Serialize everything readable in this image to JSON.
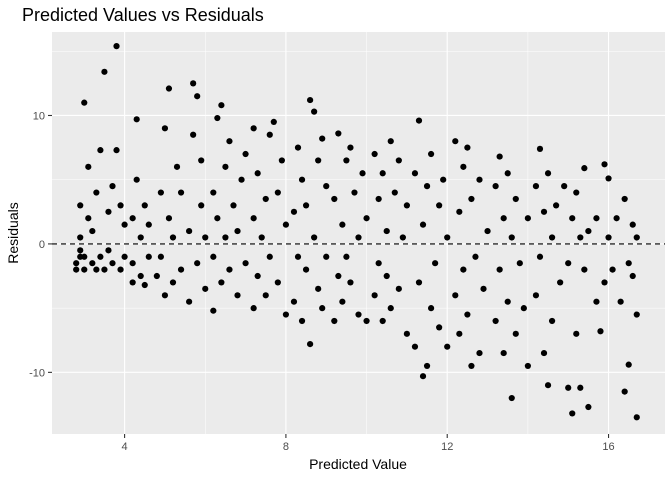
{
  "chart_data": {
    "type": "scatter",
    "title": "Predicted Values vs Residuals",
    "xlabel": "Predicted Value",
    "ylabel": "Residuals",
    "xlim": [
      2.2,
      17.4
    ],
    "ylim": [
      -14.8,
      16.5
    ],
    "x_ticks": [
      4,
      8,
      12,
      16
    ],
    "x_tick_labels": [
      "4",
      "8",
      "12",
      "16"
    ],
    "y_ticks": [
      -10,
      0,
      10
    ],
    "y_tick_labels": [
      "-10",
      "0",
      "10"
    ],
    "x_minor_ticks": [
      6,
      10,
      14
    ],
    "y_minor_ticks": [
      -5,
      5,
      15
    ],
    "reference_line": {
      "y": 0,
      "style": "dashed"
    },
    "grid": true,
    "colors": {
      "panel": "#ebebeb",
      "point": "#000000",
      "grid": "#ffffff",
      "ref_line": "#000000"
    },
    "points": [
      {
        "x": 2.8,
        "y": -2
      },
      {
        "x": 2.8,
        "y": -1.5
      },
      {
        "x": 2.9,
        "y": -1
      },
      {
        "x": 2.9,
        "y": -0.5
      },
      {
        "x": 2.9,
        "y": 0.5
      },
      {
        "x": 2.9,
        "y": 3
      },
      {
        "x": 3.0,
        "y": -2
      },
      {
        "x": 3.0,
        "y": -1
      },
      {
        "x": 3.0,
        "y": 11
      },
      {
        "x": 3.1,
        "y": 2
      },
      {
        "x": 3.1,
        "y": 6
      },
      {
        "x": 3.2,
        "y": -1.5
      },
      {
        "x": 3.2,
        "y": 1
      },
      {
        "x": 3.3,
        "y": -2
      },
      {
        "x": 3.3,
        "y": 4
      },
      {
        "x": 3.4,
        "y": -1
      },
      {
        "x": 3.4,
        "y": 7.3
      },
      {
        "x": 3.5,
        "y": 13.4
      },
      {
        "x": 3.5,
        "y": -2
      },
      {
        "x": 3.6,
        "y": -0.5
      },
      {
        "x": 3.6,
        "y": 2.5
      },
      {
        "x": 3.7,
        "y": -1.5
      },
      {
        "x": 3.7,
        "y": 4.5
      },
      {
        "x": 3.8,
        "y": 15.4
      },
      {
        "x": 3.8,
        "y": 7.3
      },
      {
        "x": 3.9,
        "y": -2
      },
      {
        "x": 3.9,
        "y": 3
      },
      {
        "x": 4.0,
        "y": -1
      },
      {
        "x": 4.0,
        "y": 1.5
      },
      {
        "x": 4.2,
        "y": -3
      },
      {
        "x": 4.2,
        "y": -1.5
      },
      {
        "x": 4.2,
        "y": 2
      },
      {
        "x": 4.3,
        "y": 5
      },
      {
        "x": 4.3,
        "y": 9.7
      },
      {
        "x": 4.4,
        "y": -2.5
      },
      {
        "x": 4.4,
        "y": 0.5
      },
      {
        "x": 4.5,
        "y": -3.2
      },
      {
        "x": 4.5,
        "y": 3
      },
      {
        "x": 4.6,
        "y": -1
      },
      {
        "x": 4.6,
        "y": 1.5
      },
      {
        "x": 4.8,
        "y": -2.5
      },
      {
        "x": 4.9,
        "y": -1
      },
      {
        "x": 4.9,
        "y": 4
      },
      {
        "x": 5.0,
        "y": 9
      },
      {
        "x": 5.0,
        "y": -4
      },
      {
        "x": 5.1,
        "y": 12.1
      },
      {
        "x": 5.1,
        "y": 2
      },
      {
        "x": 5.2,
        "y": -3
      },
      {
        "x": 5.2,
        "y": 0.5
      },
      {
        "x": 5.3,
        "y": 6
      },
      {
        "x": 5.4,
        "y": -2
      },
      {
        "x": 5.4,
        "y": 4
      },
      {
        "x": 5.6,
        "y": -4.5
      },
      {
        "x": 5.6,
        "y": 1
      },
      {
        "x": 5.7,
        "y": 12.5
      },
      {
        "x": 5.7,
        "y": 8.5
      },
      {
        "x": 5.8,
        "y": 11.5
      },
      {
        "x": 5.8,
        "y": -1.5
      },
      {
        "x": 5.9,
        "y": 3
      },
      {
        "x": 5.9,
        "y": 6.5
      },
      {
        "x": 6.0,
        "y": -3.5
      },
      {
        "x": 6.0,
        "y": 0.5
      },
      {
        "x": 6.2,
        "y": -5.2
      },
      {
        "x": 6.2,
        "y": -1
      },
      {
        "x": 6.2,
        "y": 4
      },
      {
        "x": 6.3,
        "y": 9.8
      },
      {
        "x": 6.3,
        "y": 2
      },
      {
        "x": 6.4,
        "y": 10.8
      },
      {
        "x": 6.4,
        "y": -3
      },
      {
        "x": 6.5,
        "y": 6
      },
      {
        "x": 6.5,
        "y": 0.5
      },
      {
        "x": 6.6,
        "y": -2
      },
      {
        "x": 6.6,
        "y": 8
      },
      {
        "x": 6.7,
        "y": 3
      },
      {
        "x": 6.8,
        "y": -4
      },
      {
        "x": 6.8,
        "y": 1
      },
      {
        "x": 6.9,
        "y": 5
      },
      {
        "x": 7.0,
        "y": -1.5
      },
      {
        "x": 7.0,
        "y": 7
      },
      {
        "x": 7.2,
        "y": -5
      },
      {
        "x": 7.2,
        "y": 9
      },
      {
        "x": 7.2,
        "y": 2
      },
      {
        "x": 7.3,
        "y": -2.5
      },
      {
        "x": 7.3,
        "y": 5.5
      },
      {
        "x": 7.4,
        "y": 0.5
      },
      {
        "x": 7.5,
        "y": -4
      },
      {
        "x": 7.5,
        "y": 3.5
      },
      {
        "x": 7.6,
        "y": 8.5
      },
      {
        "x": 7.6,
        "y": -1
      },
      {
        "x": 7.7,
        "y": 9.5
      },
      {
        "x": 7.8,
        "y": -3
      },
      {
        "x": 7.8,
        "y": 4
      },
      {
        "x": 7.9,
        "y": 6.5
      },
      {
        "x": 8.0,
        "y": -5.5
      },
      {
        "x": 8.0,
        "y": 1.5
      },
      {
        "x": 8.2,
        "y": -4.5
      },
      {
        "x": 8.2,
        "y": 2.5
      },
      {
        "x": 8.3,
        "y": -1
      },
      {
        "x": 8.3,
        "y": 7.5
      },
      {
        "x": 8.4,
        "y": -6
      },
      {
        "x": 8.4,
        "y": 5
      },
      {
        "x": 8.5,
        "y": -2
      },
      {
        "x": 8.5,
        "y": 3
      },
      {
        "x": 8.6,
        "y": 11.2
      },
      {
        "x": 8.6,
        "y": -7.8
      },
      {
        "x": 8.7,
        "y": 10.3
      },
      {
        "x": 8.7,
        "y": 0.5
      },
      {
        "x": 8.8,
        "y": -3.5
      },
      {
        "x": 8.8,
        "y": 6.5
      },
      {
        "x": 8.9,
        "y": -5
      },
      {
        "x": 8.9,
        "y": 8.2
      },
      {
        "x": 9.0,
        "y": -1
      },
      {
        "x": 9.0,
        "y": 4.5
      },
      {
        "x": 9.2,
        "y": -6
      },
      {
        "x": 9.2,
        "y": 3.5
      },
      {
        "x": 9.3,
        "y": -2.5
      },
      {
        "x": 9.3,
        "y": 8.6
      },
      {
        "x": 9.4,
        "y": -4.5
      },
      {
        "x": 9.4,
        "y": 1.5
      },
      {
        "x": 9.5,
        "y": 6.5
      },
      {
        "x": 9.5,
        "y": -1
      },
      {
        "x": 9.6,
        "y": 7.5
      },
      {
        "x": 9.6,
        "y": -3
      },
      {
        "x": 9.7,
        "y": 4
      },
      {
        "x": 9.8,
        "y": -5.5
      },
      {
        "x": 9.8,
        "y": 0.5
      },
      {
        "x": 9.9,
        "y": 5.5
      },
      {
        "x": 10.0,
        "y": -6
      },
      {
        "x": 10.0,
        "y": 2
      },
      {
        "x": 10.2,
        "y": -4
      },
      {
        "x": 10.2,
        "y": 7
      },
      {
        "x": 10.3,
        "y": -1.5
      },
      {
        "x": 10.3,
        "y": 3.5
      },
      {
        "x": 10.4,
        "y": -6
      },
      {
        "x": 10.4,
        "y": 5.5
      },
      {
        "x": 10.5,
        "y": -2.5
      },
      {
        "x": 10.5,
        "y": 1
      },
      {
        "x": 10.6,
        "y": 8
      },
      {
        "x": 10.6,
        "y": -5
      },
      {
        "x": 10.7,
        "y": 4
      },
      {
        "x": 10.8,
        "y": -3.5
      },
      {
        "x": 10.8,
        "y": 6.5
      },
      {
        "x": 10.9,
        "y": 0.5
      },
      {
        "x": 11.0,
        "y": -7
      },
      {
        "x": 11.0,
        "y": 3
      },
      {
        "x": 11.2,
        "y": -8
      },
      {
        "x": 11.2,
        "y": 5.5
      },
      {
        "x": 11.3,
        "y": -3
      },
      {
        "x": 11.3,
        "y": 9.6
      },
      {
        "x": 11.4,
        "y": -10.3
      },
      {
        "x": 11.4,
        "y": 1.5
      },
      {
        "x": 11.5,
        "y": -9.5
      },
      {
        "x": 11.5,
        "y": 4.5
      },
      {
        "x": 11.6,
        "y": -5
      },
      {
        "x": 11.6,
        "y": 7
      },
      {
        "x": 11.7,
        "y": -1.5
      },
      {
        "x": 11.8,
        "y": 3
      },
      {
        "x": 11.8,
        "y": -6.5
      },
      {
        "x": 11.9,
        "y": 5
      },
      {
        "x": 12.0,
        "y": -8
      },
      {
        "x": 12.0,
        "y": 0.5
      },
      {
        "x": 12.2,
        "y": -4
      },
      {
        "x": 12.2,
        "y": 8
      },
      {
        "x": 12.3,
        "y": -7
      },
      {
        "x": 12.3,
        "y": 2.5
      },
      {
        "x": 12.4,
        "y": 6
      },
      {
        "x": 12.4,
        "y": -2
      },
      {
        "x": 12.5,
        "y": 7.5
      },
      {
        "x": 12.5,
        "y": -5.5
      },
      {
        "x": 12.6,
        "y": -9.5
      },
      {
        "x": 12.6,
        "y": 3.5
      },
      {
        "x": 12.7,
        "y": -1
      },
      {
        "x": 12.8,
        "y": -8.5
      },
      {
        "x": 12.8,
        "y": 5
      },
      {
        "x": 12.9,
        "y": -3.5
      },
      {
        "x": 13.0,
        "y": 1
      },
      {
        "x": 13.2,
        "y": -6
      },
      {
        "x": 13.2,
        "y": 4.5
      },
      {
        "x": 13.3,
        "y": 6.8
      },
      {
        "x": 13.3,
        "y": -2
      },
      {
        "x": 13.4,
        "y": -8.5
      },
      {
        "x": 13.4,
        "y": 2
      },
      {
        "x": 13.5,
        "y": -4.5
      },
      {
        "x": 13.5,
        "y": 5.5
      },
      {
        "x": 13.6,
        "y": -12
      },
      {
        "x": 13.6,
        "y": 0.5
      },
      {
        "x": 13.7,
        "y": -7
      },
      {
        "x": 13.7,
        "y": 3.5
      },
      {
        "x": 13.8,
        "y": -1.5
      },
      {
        "x": 13.9,
        "y": -5
      },
      {
        "x": 14.0,
        "y": -9.5
      },
      {
        "x": 14.0,
        "y": 2
      },
      {
        "x": 14.2,
        "y": -4
      },
      {
        "x": 14.2,
        "y": 4.5
      },
      {
        "x": 14.3,
        "y": 7.4
      },
      {
        "x": 14.3,
        "y": -1
      },
      {
        "x": 14.4,
        "y": -8.5
      },
      {
        "x": 14.4,
        "y": 2.5
      },
      {
        "x": 14.5,
        "y": -11
      },
      {
        "x": 14.5,
        "y": 5.5
      },
      {
        "x": 14.6,
        "y": -6
      },
      {
        "x": 14.6,
        "y": 0.5
      },
      {
        "x": 14.7,
        "y": 3
      },
      {
        "x": 14.8,
        "y": -3
      },
      {
        "x": 14.9,
        "y": 4.5
      },
      {
        "x": 15.0,
        "y": -11.2
      },
      {
        "x": 15.0,
        "y": -1.5
      },
      {
        "x": 15.1,
        "y": -13.2
      },
      {
        "x": 15.1,
        "y": 2
      },
      {
        "x": 15.2,
        "y": -7
      },
      {
        "x": 15.2,
        "y": 4
      },
      {
        "x": 15.3,
        "y": -11.2
      },
      {
        "x": 15.3,
        "y": 0.5
      },
      {
        "x": 15.4,
        "y": -2
      },
      {
        "x": 15.4,
        "y": 5.9
      },
      {
        "x": 15.5,
        "y": -12.7
      },
      {
        "x": 15.5,
        "y": 1
      },
      {
        "x": 15.7,
        "y": -4.5
      },
      {
        "x": 15.7,
        "y": 2
      },
      {
        "x": 15.8,
        "y": -6.8
      },
      {
        "x": 15.9,
        "y": 6.2
      },
      {
        "x": 15.9,
        "y": -3
      },
      {
        "x": 16.0,
        "y": 5.1
      },
      {
        "x": 16.0,
        "y": 0.5
      },
      {
        "x": 16.1,
        "y": -2
      },
      {
        "x": 16.2,
        "y": 2
      },
      {
        "x": 16.3,
        "y": -4.5
      },
      {
        "x": 16.4,
        "y": -11.5
      },
      {
        "x": 16.4,
        "y": 3.5
      },
      {
        "x": 16.5,
        "y": -9.4
      },
      {
        "x": 16.5,
        "y": -1.5
      },
      {
        "x": 16.6,
        "y": 1.5
      },
      {
        "x": 16.6,
        "y": -2.5
      },
      {
        "x": 16.7,
        "y": -13.5
      },
      {
        "x": 16.7,
        "y": -5.5
      },
      {
        "x": 16.7,
        "y": 0.5
      }
    ]
  }
}
